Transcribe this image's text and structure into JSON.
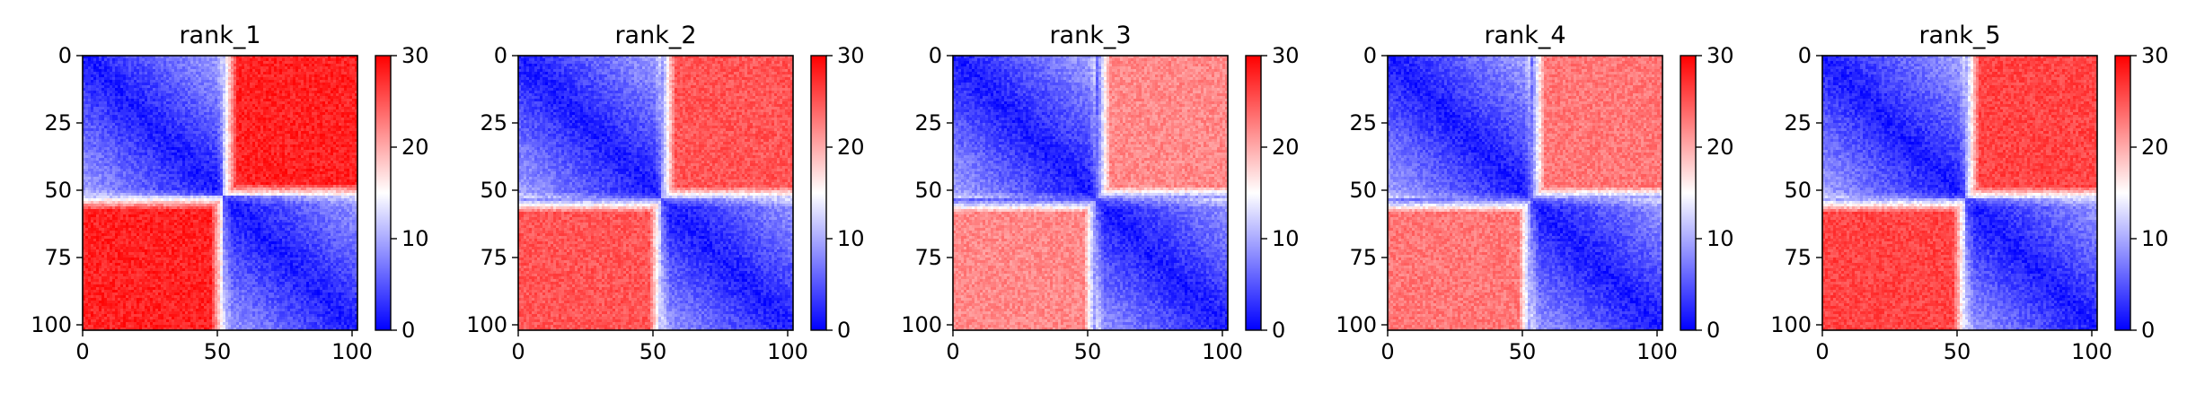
{
  "chart_data": [
    {
      "type": "heatmap",
      "title": "rank_1",
      "xticks": [
        0,
        50,
        100
      ],
      "yticks": [
        0,
        25,
        50,
        75,
        100
      ],
      "xlim": [
        0,
        102
      ],
      "ylim": [
        102,
        0
      ],
      "colorbar": {
        "ticks": [
          0,
          10,
          20,
          30
        ],
        "range": [
          0,
          30
        ],
        "cmap": "bwr"
      },
      "matrix_size": 102,
      "domain_boundary": 52,
      "off_block_level": 28
    },
    {
      "type": "heatmap",
      "title": "rank_2",
      "xticks": [
        0,
        50,
        100
      ],
      "yticks": [
        0,
        25,
        50,
        75,
        100
      ],
      "xlim": [
        0,
        102
      ],
      "ylim": [
        102,
        0
      ],
      "colorbar": {
        "ticks": [
          0,
          10,
          20,
          30
        ],
        "range": [
          0,
          30
        ],
        "cmap": "bwr"
      },
      "matrix_size": 102,
      "domain_boundary": 53,
      "off_block_level": 25
    },
    {
      "type": "heatmap",
      "title": "rank_3",
      "xticks": [
        0,
        50,
        100
      ],
      "yticks": [
        0,
        25,
        50,
        75,
        100
      ],
      "xlim": [
        0,
        102
      ],
      "ylim": [
        102,
        0
      ],
      "colorbar": {
        "ticks": [
          0,
          10,
          20,
          30
        ],
        "range": [
          0,
          30
        ],
        "cmap": "bwr"
      },
      "matrix_size": 102,
      "domain_boundary": 53,
      "off_block_level": 22
    },
    {
      "type": "heatmap",
      "title": "rank_4",
      "xticks": [
        0,
        50,
        100
      ],
      "yticks": [
        0,
        25,
        50,
        75,
        100
      ],
      "xlim": [
        0,
        102
      ],
      "ylim": [
        102,
        0
      ],
      "colorbar": {
        "ticks": [
          0,
          10,
          20,
          30
        ],
        "range": [
          0,
          30
        ],
        "cmap": "bwr"
      },
      "matrix_size": 102,
      "domain_boundary": 53,
      "off_block_level": 23
    },
    {
      "type": "heatmap",
      "title": "rank_5",
      "xticks": [
        0,
        50,
        100
      ],
      "yticks": [
        0,
        25,
        50,
        75,
        100
      ],
      "xlim": [
        0,
        102
      ],
      "ylim": [
        102,
        0
      ],
      "colorbar": {
        "ticks": [
          0,
          10,
          20,
          30
        ],
        "range": [
          0,
          30
        ],
        "cmap": "bwr"
      },
      "matrix_size": 102,
      "domain_boundary": 53,
      "off_block_level": 26
    }
  ]
}
